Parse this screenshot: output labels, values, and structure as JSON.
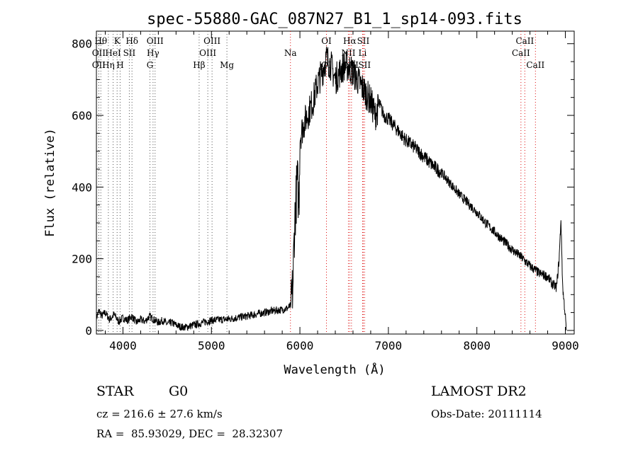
{
  "chart_data": {
    "type": "line",
    "title": "spec-55880-GAC_087N27_B1_1_sp14-093.fits",
    "xlabel": "Wavelength (Å)",
    "ylabel": "Flux (relative)",
    "xlim": [
      3700,
      9100
    ],
    "ylim": [
      -10,
      835
    ],
    "x_ticks": [
      4000,
      5000,
      6000,
      7000,
      8000,
      9000
    ],
    "y_ticks": [
      0,
      200,
      400,
      600,
      800
    ],
    "grid": false,
    "series": [
      {
        "points": [
          [
            3700,
            35
          ],
          [
            3730,
            55
          ],
          [
            3760,
            40
          ],
          [
            3800,
            50
          ],
          [
            3850,
            30
          ],
          [
            3900,
            45
          ],
          [
            3950,
            25
          ],
          [
            4000,
            35
          ],
          [
            4050,
            28
          ],
          [
            4100,
            40
          ],
          [
            4150,
            22
          ],
          [
            4200,
            30
          ],
          [
            4250,
            25
          ],
          [
            4300,
            40
          ],
          [
            4350,
            30
          ],
          [
            4400,
            22
          ],
          [
            4450,
            28
          ],
          [
            4500,
            18
          ],
          [
            4550,
            22
          ],
          [
            4600,
            15
          ],
          [
            4650,
            10
          ],
          [
            4700,
            8
          ],
          [
            4750,
            12
          ],
          [
            4800,
            15
          ],
          [
            4850,
            18
          ],
          [
            4900,
            22
          ],
          [
            4950,
            25
          ],
          [
            5000,
            28
          ],
          [
            5100,
            30
          ],
          [
            5200,
            32
          ],
          [
            5300,
            36
          ],
          [
            5400,
            40
          ],
          [
            5500,
            45
          ],
          [
            5600,
            50
          ],
          [
            5700,
            55
          ],
          [
            5800,
            58
          ],
          [
            5860,
            62
          ],
          [
            5900,
            70
          ],
          [
            5920,
            120
          ],
          [
            5940,
            300
          ],
          [
            5960,
            380
          ],
          [
            5970,
            420
          ],
          [
            5990,
            350
          ],
          [
            6000,
            540
          ],
          [
            6050,
            580
          ],
          [
            6100,
            610
          ],
          [
            6150,
            640
          ],
          [
            6200,
            690
          ],
          [
            6250,
            720
          ],
          [
            6300,
            760
          ],
          [
            6350,
            740
          ],
          [
            6400,
            700
          ],
          [
            6450,
            720
          ],
          [
            6500,
            740
          ],
          [
            6550,
            735
          ],
          [
            6600,
            720
          ],
          [
            6650,
            700
          ],
          [
            6700,
            680
          ],
          [
            6750,
            660
          ],
          [
            6800,
            640
          ],
          [
            6850,
            600
          ],
          [
            6900,
            630
          ],
          [
            6950,
            600
          ],
          [
            7000,
            590
          ],
          [
            7100,
            560
          ],
          [
            7200,
            530
          ],
          [
            7300,
            510
          ],
          [
            7400,
            485
          ],
          [
            7500,
            460
          ],
          [
            7600,
            440
          ],
          [
            7700,
            410
          ],
          [
            7800,
            380
          ],
          [
            7900,
            355
          ],
          [
            8000,
            330
          ],
          [
            8100,
            300
          ],
          [
            8200,
            275
          ],
          [
            8300,
            250
          ],
          [
            8400,
            225
          ],
          [
            8500,
            205
          ],
          [
            8600,
            180
          ],
          [
            8700,
            160
          ],
          [
            8800,
            150
          ],
          [
            8850,
            130
          ],
          [
            8900,
            120
          ],
          [
            8930,
            200
          ],
          [
            8950,
            310
          ],
          [
            8970,
            120
          ],
          [
            9000,
            40
          ],
          [
            9010,
            0
          ]
        ]
      }
    ],
    "lines": [
      {
        "x": 3750,
        "label": "Hθ",
        "row": 0,
        "color": "black"
      },
      {
        "x": 3727,
        "label": "OII",
        "row": 1,
        "color": "black"
      },
      {
        "x": 3727,
        "label": "OII",
        "row": 2,
        "color": "black"
      },
      {
        "x": 3835,
        "label": "Hη",
        "row": 2,
        "color": "black"
      },
      {
        "x": 3889,
        "label": "HeI",
        "row": 1,
        "color": "black"
      },
      {
        "x": 3934,
        "label": "K",
        "row": 0,
        "color": "black"
      },
      {
        "x": 3968,
        "label": "H",
        "row": 2,
        "color": "black"
      },
      {
        "x": 4072,
        "label": "SII",
        "row": 1,
        "color": "black"
      },
      {
        "x": 4102,
        "label": "Hδ",
        "row": 0,
        "color": "black"
      },
      {
        "x": 4340,
        "label": "Hγ",
        "row": 1,
        "color": "black"
      },
      {
        "x": 4305,
        "label": "G",
        "row": 2,
        "color": "black"
      },
      {
        "x": 4363,
        "label": "OIII",
        "row": 0,
        "color": "black"
      },
      {
        "x": 4861,
        "label": "Hβ",
        "row": 2,
        "color": "black"
      },
      {
        "x": 4959,
        "label": "OIII",
        "row": 1,
        "color": "black"
      },
      {
        "x": 5007,
        "label": "OIII",
        "row": 0,
        "color": "black"
      },
      {
        "x": 5175,
        "label": "Mg",
        "row": 2,
        "color": "black"
      },
      {
        "x": 5893,
        "label": "Na",
        "row": 1,
        "color": "red"
      },
      {
        "x": 6300,
        "label": "OI",
        "row": 0,
        "color": "red"
      },
      {
        "x": 6300,
        "label": "OI",
        "row": 2,
        "color": "red"
      },
      {
        "x": 6548,
        "label": "NII",
        "row": 1,
        "color": "red"
      },
      {
        "x": 6563,
        "label": "Hα",
        "row": 0,
        "color": "red"
      },
      {
        "x": 6583,
        "label": "NII",
        "row": 2,
        "color": "red"
      },
      {
        "x": 6708,
        "label": "Li",
        "row": 1,
        "color": "red"
      },
      {
        "x": 6716,
        "label": "SII",
        "row": 0,
        "color": "red"
      },
      {
        "x": 6731,
        "label": "SII",
        "row": 2,
        "color": "red"
      },
      {
        "x": 8498,
        "label": "CaII",
        "row": 1,
        "color": "red"
      },
      {
        "x": 8542,
        "label": "CaII",
        "row": 0,
        "color": "red"
      },
      {
        "x": 8662,
        "label": "CaII",
        "row": 2,
        "color": "red"
      }
    ]
  },
  "info": {
    "class": "STAR",
    "subclass": "G0",
    "survey": "LAMOST DR2",
    "cz": "cz = 216.6 ± 27.6 km/s",
    "obs_date": "Obs-Date: 20111114",
    "coords": "RA =  85.93029, DEC =  28.32307"
  }
}
